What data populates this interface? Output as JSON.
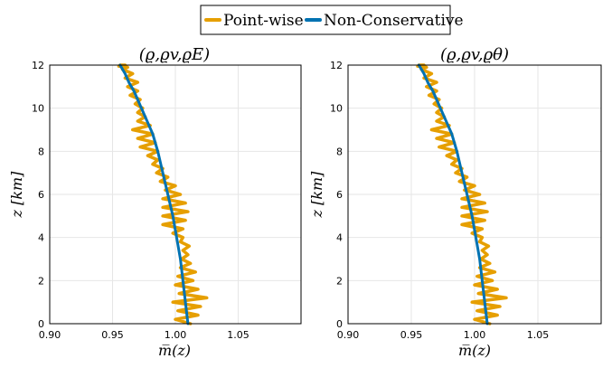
{
  "legend": {
    "items": [
      {
        "label": "Point-wise",
        "color": "#e69f00"
      },
      {
        "label": "Non-Conservative",
        "color": "#0072b2"
      }
    ]
  },
  "chart_data": [
    {
      "type": "line",
      "title": "(ϱ,ϱv,ϱE)",
      "xlabel": "m̅(z)",
      "ylabel": "z [km]",
      "xlim": [
        0.9,
        1.1
      ],
      "ylim": [
        0,
        12
      ],
      "xticks": [
        0.9,
        0.95,
        1.0,
        1.05
      ],
      "xtick_labels": [
        "0.90",
        "0.95",
        "1.00",
        "1.05"
      ],
      "yticks": [
        0,
        2,
        4,
        6,
        8,
        10,
        12
      ],
      "ytick_labels": [
        "0",
        "2",
        "4",
        "6",
        "8",
        "10",
        "12"
      ],
      "series": [
        {
          "name": "Point-wise",
          "color": "#e69f00",
          "x": [
            1.012,
            1.0,
            1.018,
            1.002,
            1.02,
            0.998,
            1.025,
            1.003,
            1.018,
            1.0,
            1.014,
            1.002,
            1.016,
            1.004,
            1.012,
            1.005,
            1.01,
            1.006,
            1.011,
            1.004,
            1.006,
            0.998,
            1.006,
            0.99,
            1.008,
            0.99,
            1.01,
            0.99,
            1.008,
            0.99,
            1.004,
            0.992,
            1.0,
            0.988,
            0.994,
            0.985,
            0.99,
            0.982,
            0.986,
            0.978,
            0.986,
            0.972,
            0.984,
            0.97,
            0.982,
            0.966,
            0.98,
            0.97,
            0.976,
            0.97,
            0.974,
            0.968,
            0.972,
            0.964,
            0.97,
            0.962,
            0.97,
            0.96,
            0.966,
            0.958,
            0.962,
            0.955,
            0.96,
            0.956
          ],
          "z": [
            0.0,
            0.2,
            0.4,
            0.6,
            0.8,
            1.0,
            1.2,
            1.4,
            1.6,
            1.8,
            2.0,
            2.2,
            2.4,
            2.6,
            2.8,
            3.0,
            3.2,
            3.4,
            3.6,
            3.8,
            4.0,
            4.2,
            4.4,
            4.6,
            4.8,
            5.0,
            5.2,
            5.4,
            5.6,
            5.8,
            6.0,
            6.2,
            6.4,
            6.6,
            6.8,
            7.0,
            7.2,
            7.4,
            7.6,
            7.8,
            8.0,
            8.2,
            8.4,
            8.6,
            8.8,
            9.0,
            9.2,
            9.4,
            9.6,
            9.8,
            10.0,
            10.2,
            10.4,
            10.6,
            10.8,
            11.0,
            11.2,
            11.4,
            11.6,
            11.8,
            11.9,
            11.95,
            12.0,
            12.0
          ]
        },
        {
          "name": "Non-Conservative",
          "color": "#0072b2",
          "x": [
            1.01,
            1.008,
            1.006,
            1.004,
            1.001,
            0.998,
            0.994,
            0.99,
            0.986,
            0.982,
            0.976,
            0.973,
            0.97,
            0.967,
            0.963,
            0.96,
            0.956
          ],
          "z": [
            0.0,
            1.0,
            2.0,
            3.0,
            4.0,
            5.0,
            6.0,
            7.0,
            8.0,
            8.8,
            9.6,
            10.0,
            10.4,
            10.8,
            11.2,
            11.6,
            12.0
          ]
        }
      ]
    },
    {
      "type": "line",
      "title": "(ϱ,ϱv,ϱθ)",
      "xlabel": "m̅(z)",
      "ylabel": "z [km]",
      "xlim": [
        0.9,
        1.1
      ],
      "ylim": [
        0,
        12
      ],
      "xticks": [
        0.9,
        0.95,
        1.0,
        1.05
      ],
      "xtick_labels": [
        "0.90",
        "0.95",
        "1.00",
        "1.05"
      ],
      "yticks": [
        0,
        2,
        4,
        6,
        8,
        10,
        12
      ],
      "ytick_labels": [
        "0",
        "2",
        "4",
        "6",
        "8",
        "10",
        "12"
      ],
      "series": [
        {
          "name": "Point-wise",
          "color": "#e69f00",
          "x": [
            1.012,
            1.0,
            1.018,
            1.002,
            1.02,
            0.998,
            1.025,
            1.003,
            1.018,
            1.0,
            1.014,
            1.002,
            1.016,
            1.004,
            1.012,
            1.005,
            1.01,
            1.006,
            1.011,
            1.004,
            1.006,
            0.998,
            1.006,
            0.99,
            1.008,
            0.99,
            1.01,
            0.99,
            1.008,
            0.99,
            1.004,
            0.992,
            1.0,
            0.988,
            0.994,
            0.985,
            0.99,
            0.982,
            0.986,
            0.978,
            0.986,
            0.972,
            0.984,
            0.97,
            0.982,
            0.966,
            0.98,
            0.97,
            0.976,
            0.97,
            0.974,
            0.968,
            0.972,
            0.964,
            0.97,
            0.962,
            0.97,
            0.96,
            0.966,
            0.958,
            0.962,
            0.955,
            0.96,
            0.956
          ],
          "z": [
            0.0,
            0.2,
            0.4,
            0.6,
            0.8,
            1.0,
            1.2,
            1.4,
            1.6,
            1.8,
            2.0,
            2.2,
            2.4,
            2.6,
            2.8,
            3.0,
            3.2,
            3.4,
            3.6,
            3.8,
            4.0,
            4.2,
            4.4,
            4.6,
            4.8,
            5.0,
            5.2,
            5.4,
            5.6,
            5.8,
            6.0,
            6.2,
            6.4,
            6.6,
            6.8,
            7.0,
            7.2,
            7.4,
            7.6,
            7.8,
            8.0,
            8.2,
            8.4,
            8.6,
            8.8,
            9.0,
            9.2,
            9.4,
            9.6,
            9.8,
            10.0,
            10.2,
            10.4,
            10.6,
            10.8,
            11.0,
            11.2,
            11.4,
            11.6,
            11.8,
            11.9,
            11.95,
            12.0,
            12.0
          ]
        },
        {
          "name": "Non-Conservative",
          "color": "#0072b2",
          "x": [
            1.01,
            1.008,
            1.006,
            1.004,
            1.001,
            0.998,
            0.994,
            0.99,
            0.986,
            0.982,
            0.976,
            0.973,
            0.97,
            0.967,
            0.963,
            0.96,
            0.956
          ],
          "z": [
            0.0,
            1.0,
            2.0,
            3.0,
            4.0,
            5.0,
            6.0,
            7.0,
            8.0,
            8.8,
            9.6,
            10.0,
            10.4,
            10.8,
            11.2,
            11.6,
            12.0
          ]
        }
      ]
    }
  ]
}
